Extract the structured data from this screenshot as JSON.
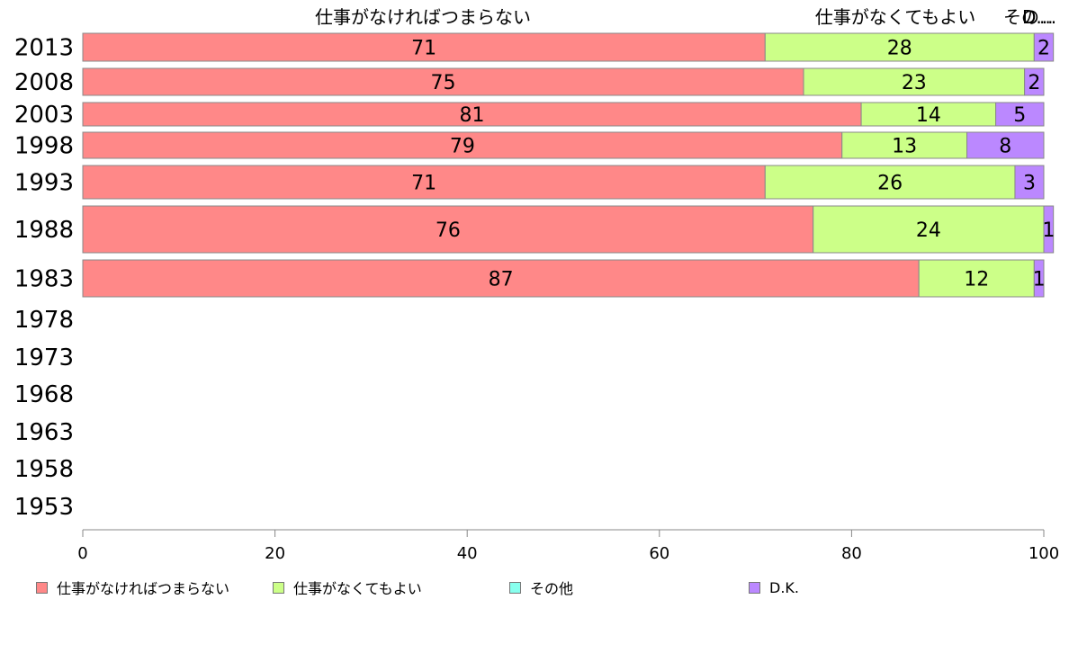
{
  "chart_data": {
    "type": "bar",
    "orientation": "horizontal",
    "stacked": true,
    "categories": [
      "2013",
      "2008",
      "2003",
      "1998",
      "1993",
      "1988",
      "1983",
      "1978",
      "1973",
      "1968",
      "1963",
      "1958",
      "1953"
    ],
    "series": [
      {
        "name": "仕事がなければつまらない",
        "color": "#ff8888",
        "values": [
          71,
          75,
          81,
          79,
          71,
          76,
          87,
          null,
          null,
          null,
          null,
          null,
          null
        ]
      },
      {
        "name": "仕事がなくてもよい",
        "color": "#ccff88",
        "values": [
          28,
          23,
          14,
          13,
          26,
          24,
          12,
          null,
          null,
          null,
          null,
          null,
          null
        ]
      },
      {
        "name": "その他",
        "color": "#88ffee",
        "values": [
          0,
          0,
          0,
          0,
          0,
          0,
          0,
          null,
          null,
          null,
          null,
          null,
          null
        ]
      },
      {
        "name": "D.K.",
        "color": "#bb88ff",
        "values": [
          2,
          2,
          5,
          8,
          3,
          1,
          1,
          null,
          null,
          null,
          null,
          null,
          null
        ]
      }
    ],
    "data_labels": [
      [
        "71",
        "28",
        "",
        "2"
      ],
      [
        "75",
        "23",
        "",
        "2"
      ],
      [
        "81",
        "14",
        "",
        "5"
      ],
      [
        "79",
        "13",
        "",
        "8"
      ],
      [
        "71",
        "26",
        "",
        "3"
      ],
      [
        "76",
        "24",
        "",
        "1"
      ],
      [
        "87",
        "12",
        "",
        "1"
      ]
    ],
    "top_labels": [
      "仕事がなければつまらない",
      "仕事がなくてもよい",
      "その...",
      "D..."
    ],
    "xlim": [
      0,
      100
    ],
    "xticks": [
      "0",
      "20",
      "40",
      "60",
      "80",
      "100"
    ],
    "grid": false,
    "legend_position": "bottom"
  }
}
